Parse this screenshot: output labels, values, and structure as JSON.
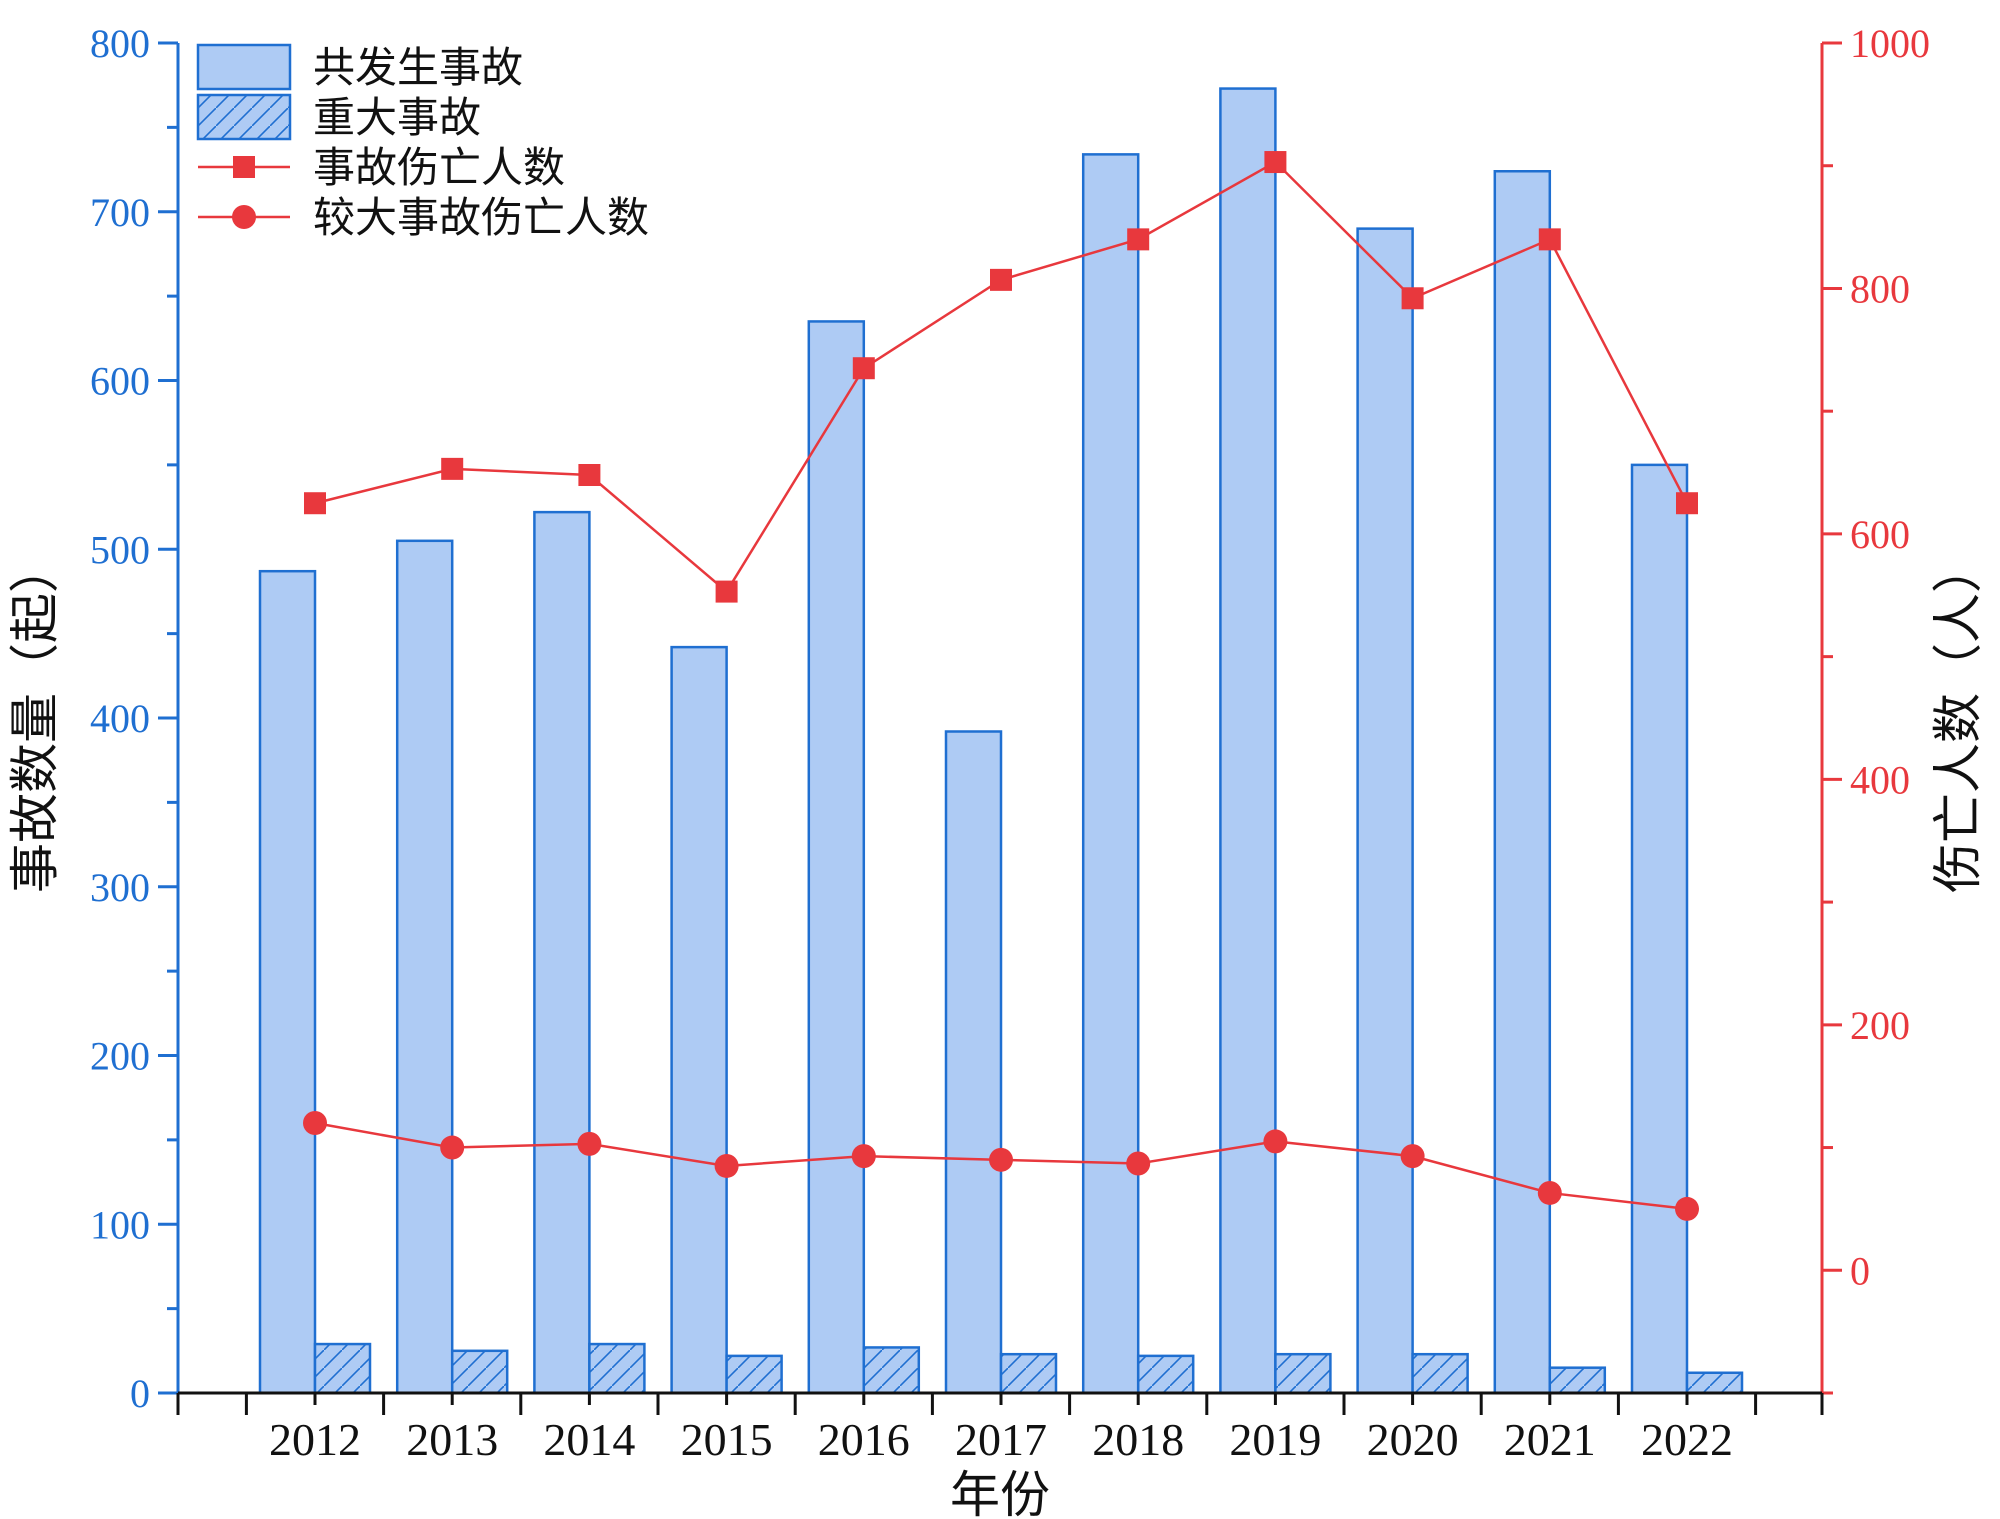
{
  "chart_data": {
    "type": "bar",
    "categories": [
      "2012",
      "2013",
      "2014",
      "2015",
      "2016",
      "2017",
      "2018",
      "2019",
      "2020",
      "2021",
      "2022"
    ],
    "xlabel": "年份",
    "ylabel": "事故数量（起）",
    "ylabel_right": "伤亡人数（人）",
    "ylim": [
      0,
      800
    ],
    "ylim_right": [
      -100,
      1000
    ],
    "yticks": [
      0,
      100,
      200,
      300,
      400,
      500,
      600,
      700,
      800
    ],
    "yticks_right": [
      0,
      200,
      400,
      600,
      800,
      1000
    ],
    "grid": false,
    "legend_position": "top-left",
    "series": [
      {
        "name": "共发生事故",
        "type": "bar",
        "axis": "left",
        "values": [
          487,
          505,
          522,
          442,
          635,
          392,
          734,
          773,
          690,
          724,
          550
        ]
      },
      {
        "name": "重大事故",
        "type": "bar",
        "axis": "left",
        "pattern": "hatch",
        "values": [
          29,
          25,
          29,
          22,
          27,
          23,
          22,
          23,
          23,
          15,
          12
        ]
      },
      {
        "name": "事故伤亡人数",
        "type": "line",
        "axis": "right",
        "marker": "square",
        "values": [
          625,
          653,
          648,
          553,
          735,
          807,
          840,
          903,
          792,
          840,
          625
        ]
      },
      {
        "name": "较大事故伤亡人数",
        "type": "line",
        "axis": "right",
        "marker": "circle",
        "values": [
          120,
          100,
          103,
          85,
          93,
          90,
          87,
          105,
          93,
          63,
          50
        ]
      }
    ],
    "colors": {
      "left_axis": "#1f6fd1",
      "right_axis": "#e8383d",
      "bar_fill": "#aecbf4",
      "bar_stroke": "#1f6fd1",
      "line": "#e8383d"
    }
  }
}
